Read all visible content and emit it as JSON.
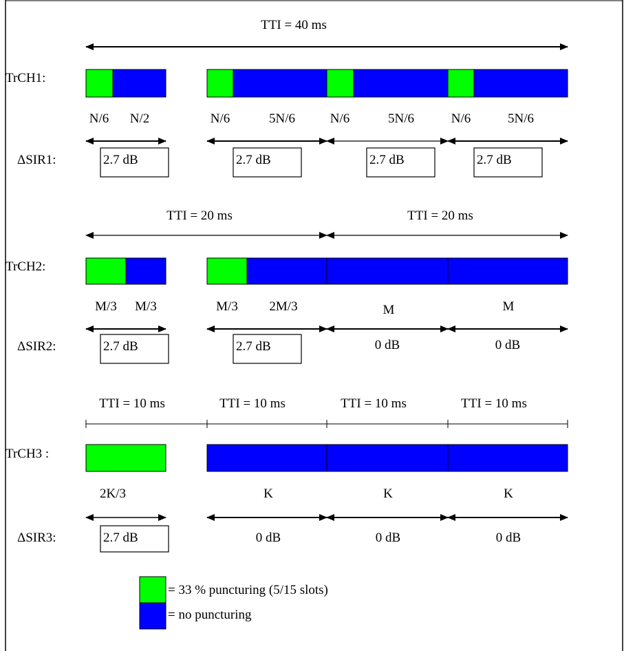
{
  "colors": {
    "punctured": "#00ff00",
    "unpunctured": "#0000ff",
    "line": "#000000",
    "border": "#000000"
  },
  "tti_labels": {
    "tti40": "TTI = 40 ms",
    "tti20_a": "TTI = 20 ms",
    "tti20_b": "TTI = 20 ms",
    "tti10_a": "TTI = 10 ms",
    "tti10_b": "TTI = 10 ms",
    "tti10_c": "TTI = 10 ms",
    "tti10_d": "TTI = 10 ms"
  },
  "trch1": {
    "label": "TrCH1:",
    "sizes": [
      "N/6",
      "N/2",
      "N/6",
      "5N/6",
      "N/6",
      "5N/6",
      "N/6",
      "5N/6"
    ],
    "sir_label": "ΔSIR1:",
    "sir_values": [
      "2.7 dB",
      "2.7 dB",
      "2.7 dB",
      "2.7 dB"
    ]
  },
  "trch2": {
    "label": "TrCH2:",
    "sizes": [
      "M/3",
      "M/3",
      "M/3",
      "2M/3",
      "M",
      "M"
    ],
    "sir_label": "ΔSIR2:",
    "sir_values": [
      "2.7 dB",
      "2.7 dB",
      "0 dB",
      "0 dB"
    ]
  },
  "trch3": {
    "label": "TrCH3 :",
    "sizes": [
      "2K/3",
      "K",
      "K",
      "K"
    ],
    "sir_label": "ΔSIR3:",
    "sir_values": [
      "2.7 dB",
      "0 dB",
      "0 dB",
      "0 dB"
    ]
  },
  "legend": {
    "punctured_label": "= 33 % puncturing (5/15 slots)",
    "unpunctured_label": "= no puncturing"
  }
}
